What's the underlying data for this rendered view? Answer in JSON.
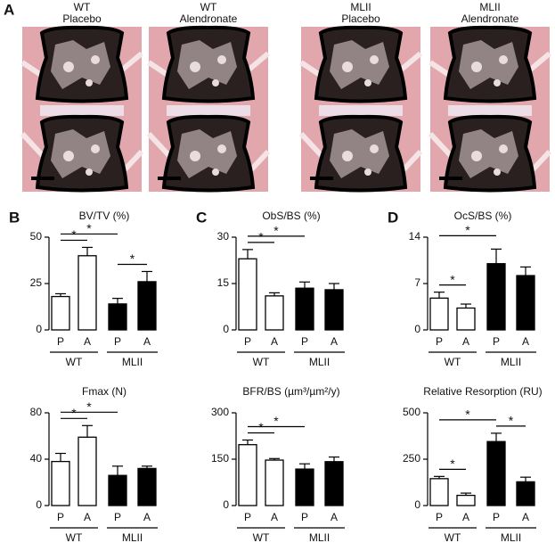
{
  "panel_a": {
    "label": "A",
    "images": [
      {
        "line1": "WT",
        "line2": "Placebo"
      },
      {
        "line1": "WT",
        "line2": "Alendronate"
      },
      {
        "line1": "MLII",
        "line2": "Placebo"
      },
      {
        "line1": "MLII",
        "line2": "Alendronate"
      }
    ]
  },
  "chart_data": [
    {
      "type": "bar",
      "panel": "B",
      "title": "BV/TV (%)",
      "categories": [
        "P",
        "A",
        "P",
        "A"
      ],
      "groups": [
        "WT",
        "MLII"
      ],
      "values": [
        18,
        40,
        14,
        26
      ],
      "errors": [
        1.5,
        4.5,
        3,
        5.5
      ],
      "colors": [
        "#ffffff",
        "#ffffff",
        "#000000",
        "#000000"
      ],
      "ylim": [
        0,
        50
      ],
      "yticks": [
        0,
        25,
        50
      ],
      "significance": [
        {
          "from": 0,
          "to": 1,
          "label": "*"
        },
        {
          "from": 0,
          "to": 2,
          "label": "*"
        },
        {
          "from": 2,
          "to": 3,
          "label": "*"
        }
      ]
    },
    {
      "type": "bar",
      "panel": "C",
      "title": "ObS/BS (%)",
      "categories": [
        "P",
        "A",
        "P",
        "A"
      ],
      "groups": [
        "WT",
        "MLII"
      ],
      "values": [
        23,
        11,
        13.5,
        13
      ],
      "errors": [
        3,
        1,
        2,
        2
      ],
      "colors": [
        "#ffffff",
        "#ffffff",
        "#000000",
        "#000000"
      ],
      "ylim": [
        0,
        30
      ],
      "yticks": [
        0,
        15,
        30
      ],
      "significance": [
        {
          "from": 0,
          "to": 1,
          "label": "*"
        },
        {
          "from": 0,
          "to": 2,
          "label": "*"
        }
      ]
    },
    {
      "type": "bar",
      "panel": "D",
      "title": "OcS/BS (%)",
      "categories": [
        "P",
        "A",
        "P",
        "A"
      ],
      "groups": [
        "WT",
        "MLII"
      ],
      "values": [
        4.8,
        3.3,
        10,
        8.2
      ],
      "errors": [
        0.9,
        0.6,
        2.2,
        1.3
      ],
      "colors": [
        "#ffffff",
        "#ffffff",
        "#000000",
        "#000000"
      ],
      "ylim": [
        0,
        14
      ],
      "yticks": [
        0,
        7,
        14
      ],
      "significance": [
        {
          "from": 0,
          "to": 1,
          "label": "*"
        },
        {
          "from": 0,
          "to": 2,
          "label": "*"
        }
      ]
    },
    {
      "type": "bar",
      "title": "Fmax (N)",
      "categories": [
        "P",
        "A",
        "P",
        "A"
      ],
      "groups": [
        "WT",
        "MLII"
      ],
      "values": [
        38,
        59,
        26,
        32
      ],
      "errors": [
        7,
        10,
        8,
        2
      ],
      "colors": [
        "#ffffff",
        "#ffffff",
        "#000000",
        "#000000"
      ],
      "ylim": [
        0,
        80
      ],
      "yticks": [
        0,
        40,
        80
      ],
      "significance": [
        {
          "from": 0,
          "to": 1,
          "label": "*"
        },
        {
          "from": 0,
          "to": 2,
          "label": "*"
        }
      ]
    },
    {
      "type": "bar",
      "title": "BFR/BS (µm³/µm²/y)",
      "categories": [
        "P",
        "A",
        "P",
        "A"
      ],
      "groups": [
        "WT",
        "MLII"
      ],
      "values": [
        197,
        147,
        118,
        142
      ],
      "errors": [
        15,
        5,
        17,
        15
      ],
      "colors": [
        "#ffffff",
        "#ffffff",
        "#000000",
        "#000000"
      ],
      "ylim": [
        0,
        300
      ],
      "yticks": [
        0,
        150,
        300
      ],
      "significance": [
        {
          "from": 0,
          "to": 1,
          "label": "*"
        },
        {
          "from": 0,
          "to": 2,
          "label": "*"
        }
      ]
    },
    {
      "type": "bar",
      "title": "Relative Resorption (RU)",
      "categories": [
        "P",
        "A",
        "P",
        "A"
      ],
      "groups": [
        "WT",
        "MLII"
      ],
      "values": [
        145,
        55,
        345,
        128
      ],
      "errors": [
        12,
        12,
        45,
        25
      ],
      "colors": [
        "#ffffff",
        "#ffffff",
        "#000000",
        "#000000"
      ],
      "ylim": [
        0,
        500
      ],
      "yticks": [
        0,
        250,
        500
      ],
      "significance": [
        {
          "from": 0,
          "to": 1,
          "label": "*"
        },
        {
          "from": 0,
          "to": 2,
          "label": "*"
        },
        {
          "from": 2,
          "to": 3,
          "label": "*"
        }
      ]
    }
  ]
}
